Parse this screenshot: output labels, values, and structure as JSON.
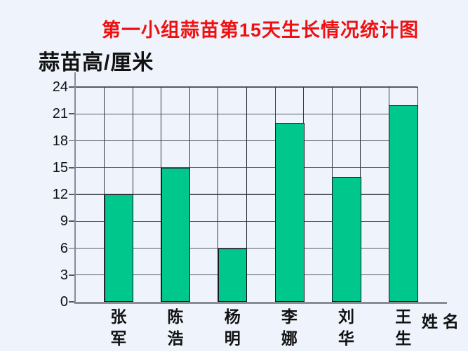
{
  "page": {
    "background_color": "#EEF3FC"
  },
  "chart_data": {
    "type": "bar",
    "title": "第一小组蒜苗第15天生长情况统计图",
    "title_color": "#F01010",
    "ylabel": "蒜苗高/厘米",
    "xlabel": "姓名",
    "categories": [
      "张军",
      "陈浩",
      "杨明",
      "李娜",
      "刘华",
      "王生"
    ],
    "values": [
      12,
      15,
      6,
      20,
      14,
      22
    ],
    "ylim": [
      0,
      24
    ],
    "yticks": [
      0,
      3,
      6,
      9,
      12,
      15,
      18,
      21,
      24
    ],
    "grid": "on",
    "grid_columns": 12,
    "legend": "none",
    "bar_color": "#00C78C",
    "bar_border_color": "#14181C",
    "grid_line_color_h": "#565B63",
    "grid_line_color_v": "#30343E",
    "axis_line_color": "#868D96"
  }
}
